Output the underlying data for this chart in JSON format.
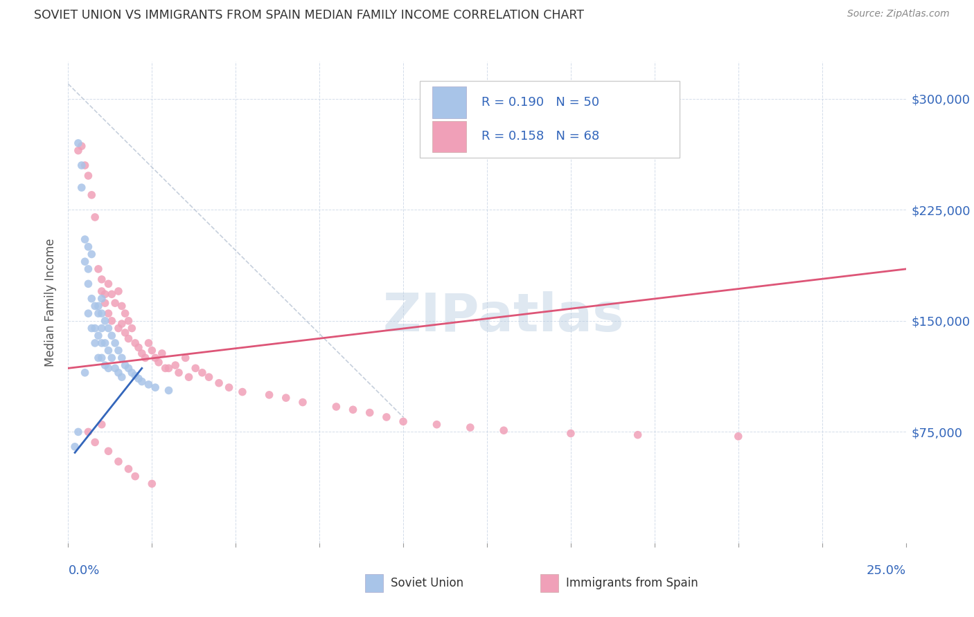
{
  "title": "SOVIET UNION VS IMMIGRANTS FROM SPAIN MEDIAN FAMILY INCOME CORRELATION CHART",
  "source": "Source: ZipAtlas.com",
  "ylabel": "Median Family Income",
  "yticks": [
    75000,
    150000,
    225000,
    300000
  ],
  "ytick_labels": [
    "$75,000",
    "$150,000",
    "$225,000",
    "$300,000"
  ],
  "xlim": [
    0.0,
    0.25
  ],
  "ylim": [
    0,
    325000
  ],
  "watermark": "ZIPatlas",
  "legend_R1": "0.190",
  "legend_N1": "50",
  "legend_R2": "0.158",
  "legend_N2": "68",
  "soviet_color": "#a8c4e8",
  "spain_color": "#f0a0b8",
  "trendline1_color": "#3366bb",
  "trendline2_color": "#dd5577",
  "diagonal_color": "#b8c4d4",
  "soviet_x": [
    0.002,
    0.003,
    0.003,
    0.004,
    0.004,
    0.005,
    0.005,
    0.005,
    0.006,
    0.006,
    0.006,
    0.006,
    0.007,
    0.007,
    0.007,
    0.008,
    0.008,
    0.008,
    0.009,
    0.009,
    0.009,
    0.009,
    0.01,
    0.01,
    0.01,
    0.01,
    0.01,
    0.011,
    0.011,
    0.011,
    0.012,
    0.012,
    0.012,
    0.013,
    0.013,
    0.014,
    0.014,
    0.015,
    0.015,
    0.016,
    0.016,
    0.017,
    0.018,
    0.019,
    0.02,
    0.021,
    0.022,
    0.024,
    0.026,
    0.03
  ],
  "soviet_y": [
    65000,
    75000,
    270000,
    255000,
    240000,
    205000,
    190000,
    115000,
    185000,
    200000,
    175000,
    155000,
    195000,
    165000,
    145000,
    160000,
    145000,
    135000,
    160000,
    155000,
    140000,
    125000,
    165000,
    155000,
    145000,
    135000,
    125000,
    150000,
    135000,
    120000,
    145000,
    130000,
    118000,
    140000,
    125000,
    135000,
    118000,
    130000,
    115000,
    125000,
    112000,
    120000,
    118000,
    115000,
    113000,
    111000,
    109000,
    107000,
    105000,
    103000
  ],
  "spain_x": [
    0.003,
    0.004,
    0.005,
    0.006,
    0.007,
    0.008,
    0.009,
    0.01,
    0.01,
    0.011,
    0.011,
    0.012,
    0.012,
    0.013,
    0.013,
    0.014,
    0.015,
    0.015,
    0.016,
    0.016,
    0.017,
    0.017,
    0.018,
    0.018,
    0.019,
    0.02,
    0.021,
    0.022,
    0.023,
    0.024,
    0.025,
    0.026,
    0.027,
    0.028,
    0.029,
    0.03,
    0.032,
    0.033,
    0.035,
    0.036,
    0.038,
    0.04,
    0.042,
    0.045,
    0.048,
    0.052,
    0.06,
    0.065,
    0.07,
    0.08,
    0.085,
    0.09,
    0.095,
    0.1,
    0.11,
    0.12,
    0.13,
    0.15,
    0.17,
    0.2,
    0.006,
    0.008,
    0.01,
    0.012,
    0.015,
    0.018,
    0.02,
    0.025
  ],
  "spain_y": [
    265000,
    268000,
    255000,
    248000,
    235000,
    220000,
    185000,
    178000,
    170000,
    168000,
    162000,
    175000,
    155000,
    168000,
    150000,
    162000,
    170000,
    145000,
    160000,
    148000,
    155000,
    142000,
    150000,
    138000,
    145000,
    135000,
    132000,
    128000,
    125000,
    135000,
    130000,
    125000,
    122000,
    128000,
    118000,
    118000,
    120000,
    115000,
    125000,
    112000,
    118000,
    115000,
    112000,
    108000,
    105000,
    102000,
    100000,
    98000,
    95000,
    92000,
    90000,
    88000,
    85000,
    82000,
    80000,
    78000,
    76000,
    74000,
    73000,
    72000,
    75000,
    68000,
    80000,
    62000,
    55000,
    50000,
    45000,
    40000
  ]
}
